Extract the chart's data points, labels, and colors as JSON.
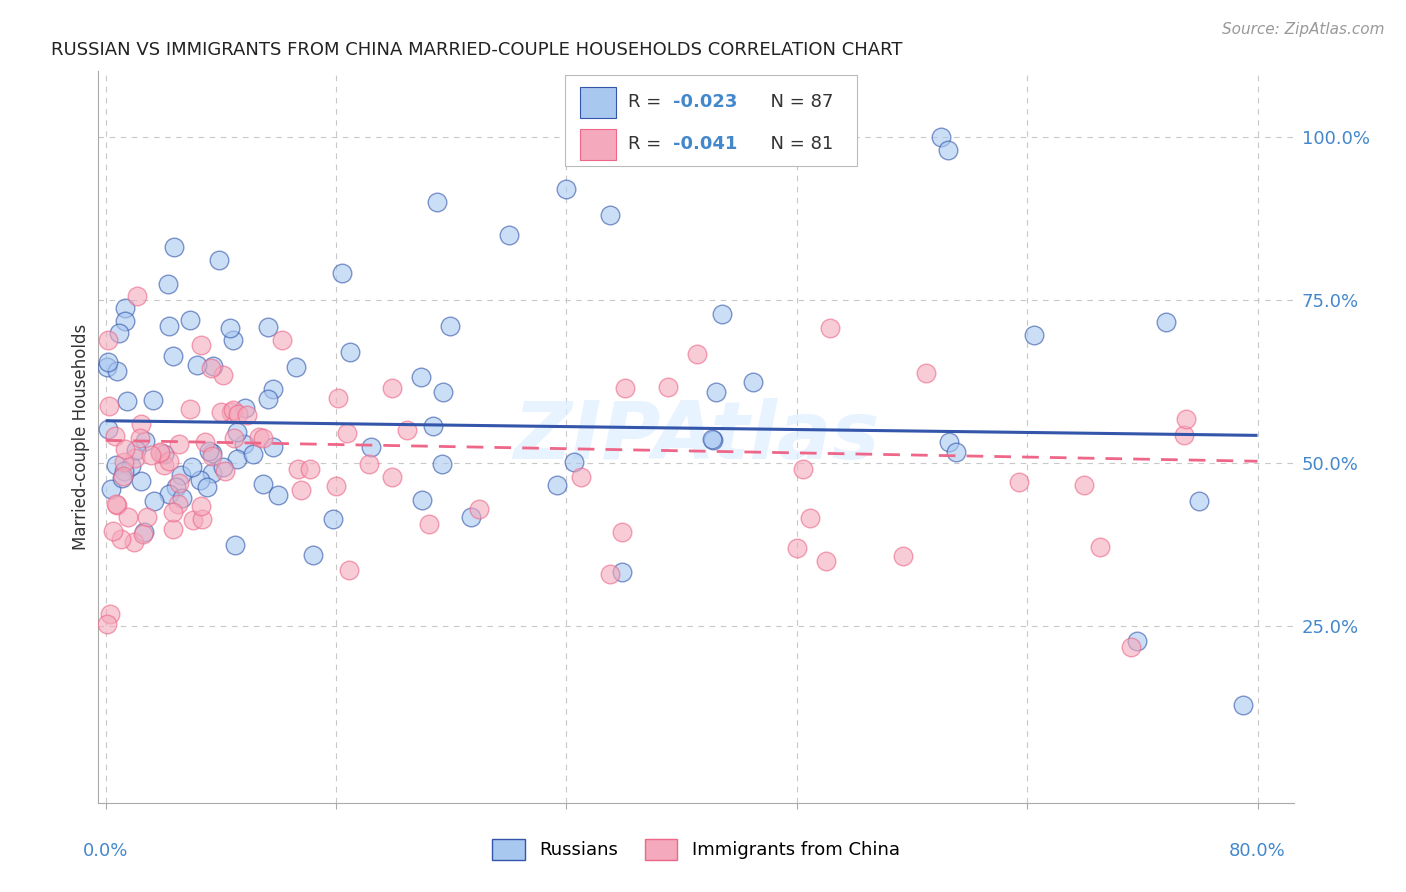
{
  "title": "RUSSIAN VS IMMIGRANTS FROM CHINA MARRIED-COUPLE HOUSEHOLDS CORRELATION CHART",
  "source": "Source: ZipAtlas.com",
  "ylabel": "Married-couple Households",
  "color_russian": "#A8C8F0",
  "color_china": "#F4AABC",
  "color_trend_russian": "#3355AA",
  "color_trend_china": "#EE6688",
  "watermark": "ZIPAtlas",
  "legend_r1": "-0.023",
  "legend_n1": "87",
  "legend_r2": "-0.041",
  "legend_n2": "81",
  "rus_intercept": 0.565,
  "rus_slope": -0.028,
  "chi_intercept": 0.535,
  "chi_slope": -0.04
}
